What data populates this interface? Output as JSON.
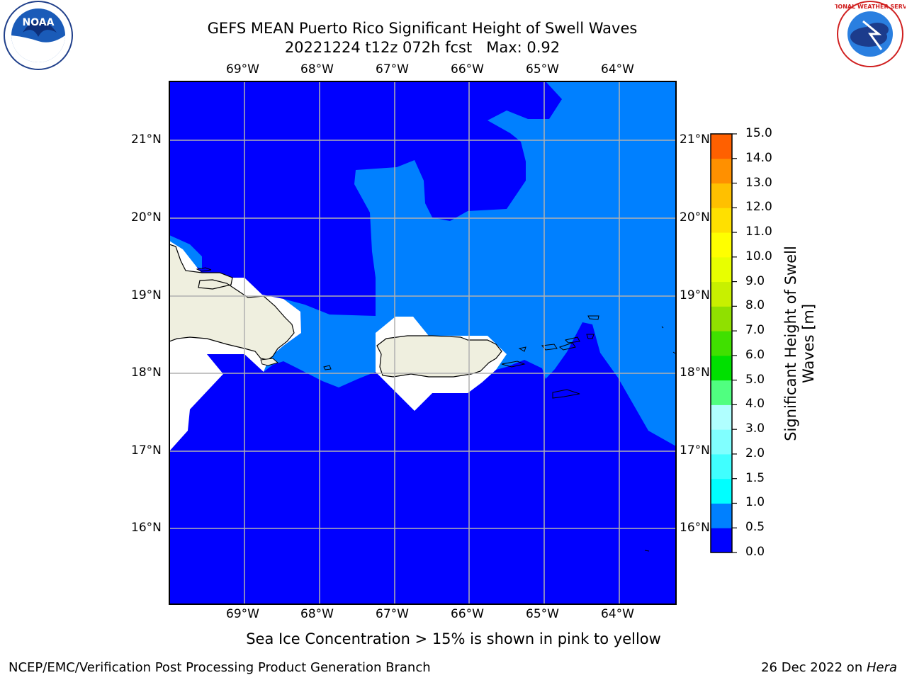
{
  "title_line1": "GEFS MEAN Puerto Rico Significant Height of Swell Waves",
  "title_line2": "20221224 t12z 072h fcst   Max: 0.92",
  "subtitle": "Sea Ice Concentration > 15% is shown in pink to yellow",
  "footer_left": "NCEP/EMC/Verification Post Processing Product Generation Branch",
  "footer_right_date": "26 Dec 2022 on ",
  "footer_right_host": "Hera",
  "logos": {
    "left": "NOAA",
    "right": "NATIONAL WEATHER SERVICE"
  },
  "map": {
    "lon_labels": [
      "69°W",
      "68°W",
      "67°W",
      "66°W",
      "65°W",
      "64°W"
    ],
    "lat_labels": [
      "21°N",
      "20°N",
      "19°N",
      "18°N",
      "17°N",
      "16°N"
    ],
    "colors": {
      "swell_0_0_5": "#0000ff",
      "swell_0_5_1_0": "#0080ff",
      "land": "#efefdf",
      "grid": "#b0b0b0"
    }
  },
  "colorbar": {
    "label_line1": "Significant Height of Swell",
    "label_line2": "Waves [m]",
    "ticks": [
      "0.0",
      "0.5",
      "1.0",
      "1.5",
      "2.0",
      "3.0",
      "4.0",
      "5.0",
      "6.0",
      "7.0",
      "8.0",
      "9.0",
      "10.0",
      "11.0",
      "12.0",
      "13.0",
      "14.0",
      "15.0"
    ],
    "colors": [
      "#0000ff",
      "#0080ff",
      "#00ffff",
      "#40ffff",
      "#80ffff",
      "#b0ffff",
      "#50ff80",
      "#00e000",
      "#40e000",
      "#90e000",
      "#c8f000",
      "#e8ff00",
      "#ffff00",
      "#ffe000",
      "#ffc000",
      "#ff9000",
      "#ff6000",
      "#ff3000",
      "#ff0000"
    ]
  }
}
